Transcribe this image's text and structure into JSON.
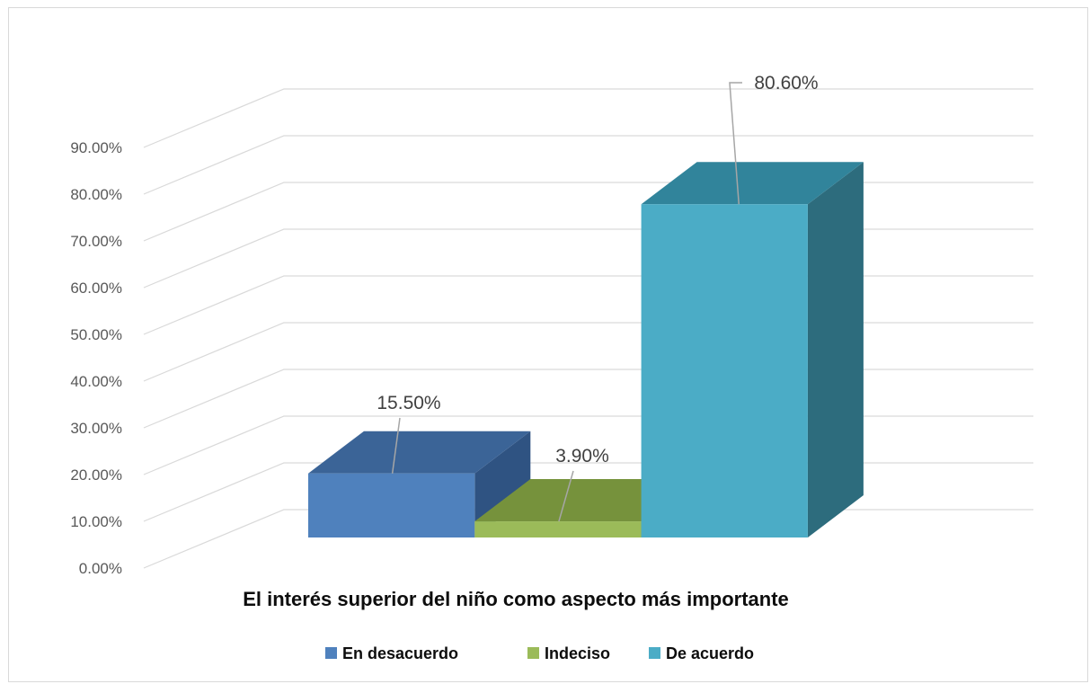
{
  "chart_data": {
    "type": "bar",
    "style": "3d-column",
    "categories": [
      "En desacuerdo",
      "Indeciso",
      "De acuerdo"
    ],
    "values": [
      15.5,
      3.9,
      80.6
    ],
    "data_labels": [
      "15.50%",
      "3.90%",
      "80.60%"
    ],
    "xlabel": "El interés superior del niño como aspecto más importante",
    "ylabel": "",
    "ylim": [
      0,
      90
    ],
    "y_ticks": [
      "0.00%",
      "10.00%",
      "20.00%",
      "30.00%",
      "40.00%",
      "50.00%",
      "60.00%",
      "70.00%",
      "80.00%",
      "90.00%"
    ],
    "grid": true,
    "legend": {
      "position": "bottom",
      "entries": [
        "En desacuerdo",
        "Indeciso",
        "De acuerdo"
      ]
    },
    "colors": {
      "front": [
        "#4f81bd",
        "#9bbb59",
        "#4bacc6"
      ],
      "top": [
        "#3b6497",
        "#76923c",
        "#31849b"
      ],
      "side": [
        "#2f5382",
        "#5f7a2f",
        "#2d6c7d"
      ],
      "grid": "#d9d9d9",
      "leader": "#a6a6a6"
    }
  }
}
